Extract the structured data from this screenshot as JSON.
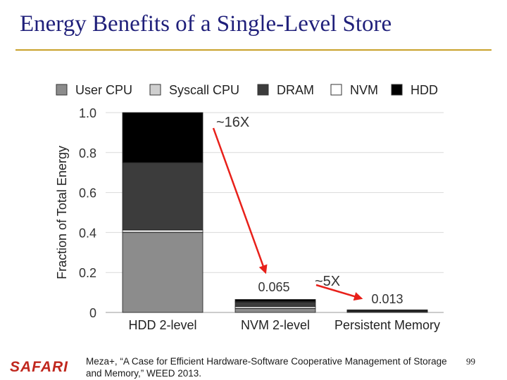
{
  "slide": {
    "title": "Energy Benefits of a Single-Level Store",
    "footer_logo": "SAFARI",
    "footer_reference": "Meza+, “A Case for Efficient Hardware-Software Cooperative Management of Storage and Memory,” WEED 2013.",
    "page_number": "99"
  },
  "colors": {
    "title": "#1f1f7a",
    "title_rule": "#c9a12a",
    "logo": "#c0281e",
    "arrow": "#e8201a"
  },
  "chart_data": {
    "type": "bar",
    "stacked": true,
    "title": "",
    "xlabel": "",
    "ylabel": "Fraction of Total Energy",
    "ylim": [
      0,
      1.0
    ],
    "yticks": [
      0,
      0.2,
      0.4,
      0.6,
      0.8,
      1.0
    ],
    "ytick_labels": [
      "0",
      "0.2",
      "0.4",
      "0.6",
      "0.8",
      "1.0"
    ],
    "grid": true,
    "legend_position": "top",
    "categories": [
      "HDD 2-level",
      "NVM 2-level",
      "Persistent Memory"
    ],
    "series": [
      {
        "name": "User CPU",
        "color": "#8c8c8c",
        "values": [
          0.4,
          0.02,
          0.0045
        ]
      },
      {
        "name": "Syscall CPU",
        "color": "#cfcfcf",
        "values": [
          0.013,
          0.01,
          0.002
        ]
      },
      {
        "name": "DRAM",
        "color": "#3c3c3c",
        "values": [
          0.337,
          0.022,
          0.0045
        ]
      },
      {
        "name": "NVM",
        "color": "#ffffff",
        "values": [
          0.0,
          0.003,
          0.002
        ]
      },
      {
        "name": "HDD",
        "color": "#000000",
        "values": [
          0.25,
          0.01,
          0.0
        ]
      }
    ],
    "data_labels": [
      {
        "category": "NVM 2-level",
        "text": "0.065"
      },
      {
        "category": "Persistent Memory",
        "text": "0.013"
      }
    ],
    "annotations": [
      {
        "text": "~16X",
        "from": "HDD 2-level",
        "to": "NVM 2-level"
      },
      {
        "text": "~5X",
        "from": "NVM 2-level",
        "to": "Persistent Memory"
      }
    ]
  }
}
